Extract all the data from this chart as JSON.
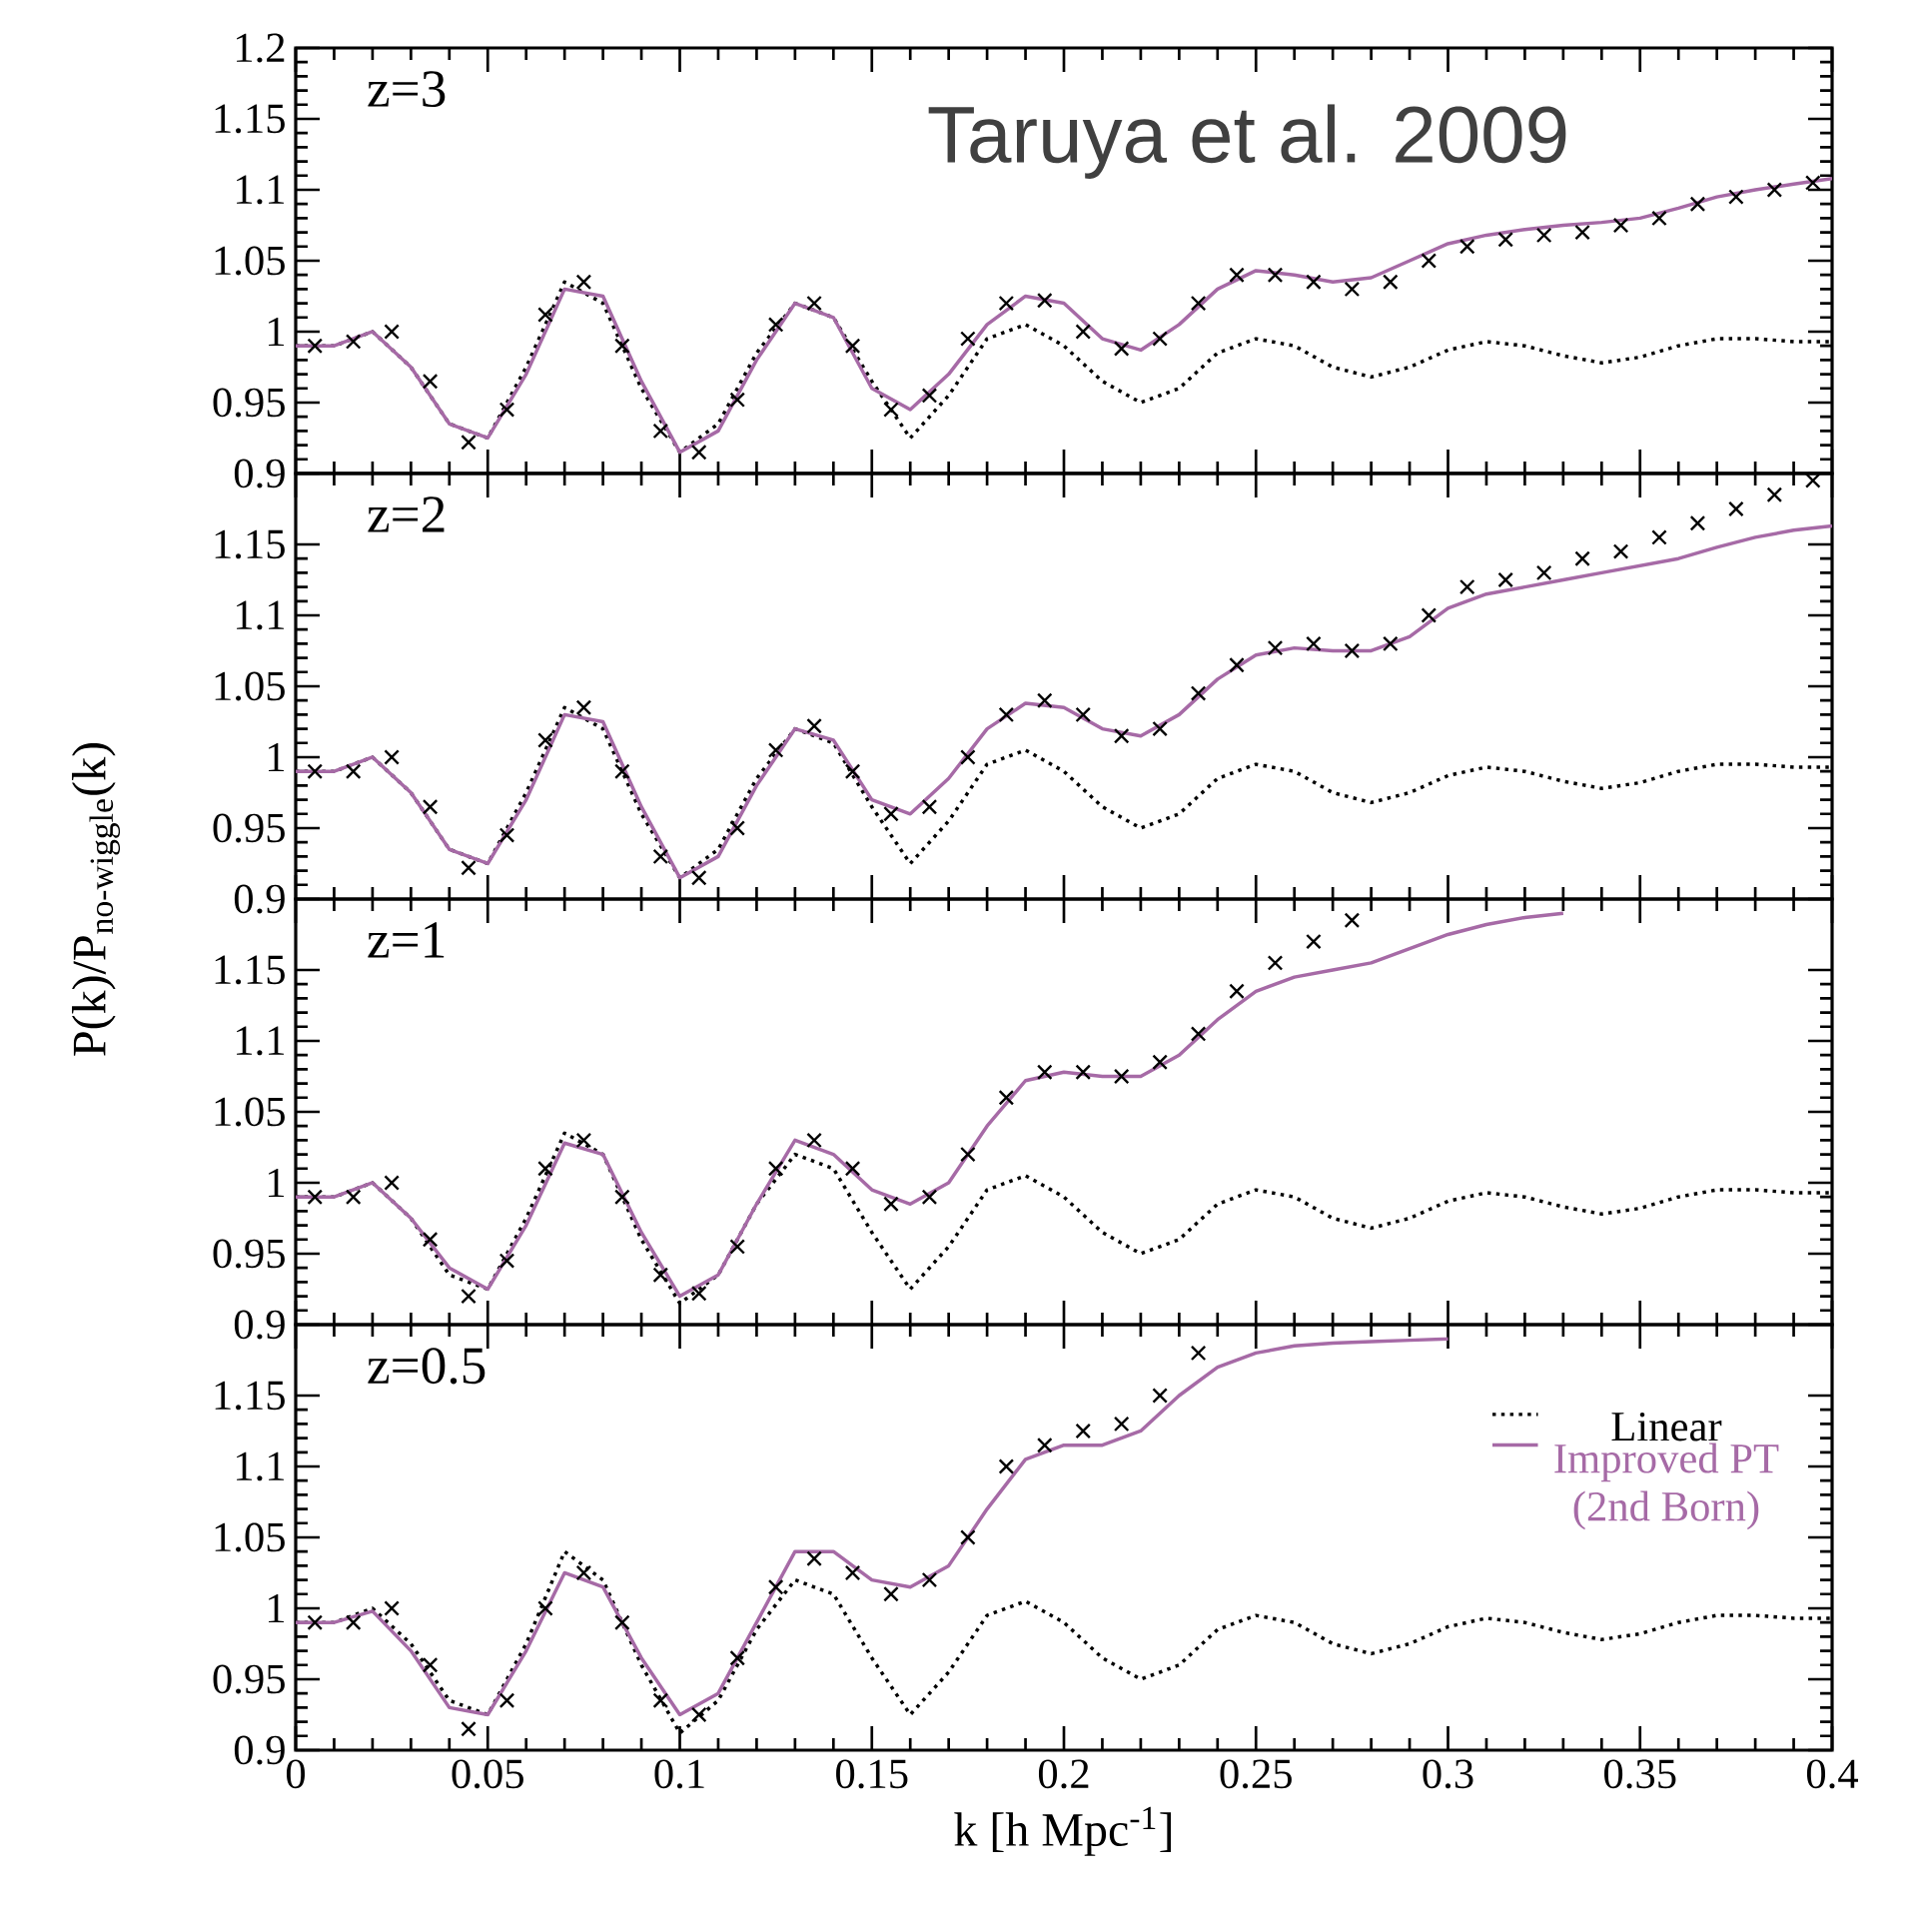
{
  "chart_data": [
    {
      "type": "line",
      "title": "z=3",
      "annotations": [
        "Taruya et al. 2009"
      ],
      "xlim": [
        0,
        0.4
      ],
      "ylim": [
        0.9,
        1.2
      ],
      "xticks": [
        0,
        0.05,
        0.1,
        0.15,
        0.2,
        0.25,
        0.3,
        0.35,
        0.4
      ],
      "yticks": [
        0.9,
        0.95,
        1,
        1.05,
        1.1,
        1.15,
        1.2
      ],
      "tick_labels": "y",
      "series": [
        {
          "type": "line",
          "color": "#000000",
          "line_style": "dotted",
          "x": [
            0,
            0.01,
            0.02,
            0.03,
            0.04,
            0.05,
            0.06,
            0.07,
            0.08,
            0.09,
            0.1,
            0.11,
            0.12,
            0.13,
            0.14,
            0.15,
            0.16,
            0.17,
            0.18,
            0.19,
            0.2,
            0.21,
            0.22,
            0.23,
            0.24,
            0.25,
            0.26,
            0.27,
            0.28,
            0.29,
            0.3,
            0.31,
            0.32,
            0.33,
            0.34,
            0.35,
            0.36,
            0.37,
            0.38,
            0.39,
            0.4
          ],
          "values": [
            0.99,
            0.99,
            1.0,
            0.975,
            0.935,
            0.925,
            0.975,
            1.035,
            1.02,
            0.96,
            0.915,
            0.935,
            0.985,
            1.02,
            1.01,
            0.965,
            0.925,
            0.955,
            0.995,
            1.005,
            0.99,
            0.965,
            0.95,
            0.96,
            0.985,
            0.995,
            0.99,
            0.975,
            0.968,
            0.975,
            0.987,
            0.993,
            0.99,
            0.983,
            0.978,
            0.982,
            0.99,
            0.995,
            0.995,
            0.993,
            0.993
          ]
        },
        {
          "type": "line",
          "color": "#a66aa6",
          "line_style": "solid",
          "x": [
            0,
            0.01,
            0.02,
            0.03,
            0.04,
            0.05,
            0.06,
            0.07,
            0.08,
            0.09,
            0.1,
            0.11,
            0.12,
            0.13,
            0.14,
            0.15,
            0.16,
            0.17,
            0.18,
            0.19,
            0.2,
            0.21,
            0.22,
            0.23,
            0.24,
            0.25,
            0.26,
            0.27,
            0.28,
            0.29,
            0.3,
            0.31,
            0.32,
            0.33,
            0.34,
            0.35,
            0.36,
            0.37,
            0.38,
            0.39,
            0.4
          ],
          "values": [
            0.99,
            0.99,
            1.0,
            0.975,
            0.935,
            0.925,
            0.97,
            1.03,
            1.025,
            0.965,
            0.915,
            0.93,
            0.98,
            1.02,
            1.01,
            0.96,
            0.945,
            0.97,
            1.005,
            1.025,
            1.02,
            0.995,
            0.987,
            1.005,
            1.03,
            1.043,
            1.04,
            1.035,
            1.038,
            1.05,
            1.062,
            1.068,
            1.072,
            1.075,
            1.077,
            1.08,
            1.087,
            1.095,
            1.1,
            1.104,
            1.108
          ]
        },
        {
          "type": "scatter",
          "color": "#000000",
          "marker": "cross",
          "x": [
            0.005,
            0.015,
            0.025,
            0.035,
            0.045,
            0.055,
            0.065,
            0.075,
            0.085,
            0.095,
            0.105,
            0.115,
            0.125,
            0.135,
            0.145,
            0.155,
            0.165,
            0.175,
            0.185,
            0.195,
            0.205,
            0.215,
            0.225,
            0.235,
            0.245,
            0.255,
            0.265,
            0.275,
            0.285,
            0.295,
            0.305,
            0.315,
            0.325,
            0.335,
            0.345,
            0.355,
            0.365,
            0.375,
            0.385,
            0.395
          ],
          "values": [
            0.99,
            0.993,
            1.0,
            0.965,
            0.922,
            0.945,
            1.012,
            1.035,
            0.99,
            0.93,
            0.915,
            0.952,
            1.005,
            1.02,
            0.99,
            0.945,
            0.955,
            0.995,
            1.02,
            1.022,
            1.0,
            0.988,
            0.995,
            1.02,
            1.04,
            1.04,
            1.035,
            1.03,
            1.035,
            1.05,
            1.06,
            1.065,
            1.068,
            1.07,
            1.075,
            1.08,
            1.09,
            1.095,
            1.1,
            1.105
          ]
        }
      ]
    },
    {
      "type": "line",
      "title": "z=2",
      "ylabel": "P(k)/P$_{no-wiggle}$(k)",
      "xlim": [
        0,
        0.4
      ],
      "ylim": [
        0.9,
        1.2
      ],
      "xticks": [
        0,
        0.05,
        0.1,
        0.15,
        0.2,
        0.25,
        0.3,
        0.35,
        0.4
      ],
      "yticks": [
        0.9,
        0.95,
        1,
        1.05,
        1.1,
        1.15
      ],
      "tick_labels": "y",
      "series": [
        {
          "type": "line",
          "color": "#000000",
          "line_style": "dotted",
          "x": [
            0,
            0.01,
            0.02,
            0.03,
            0.04,
            0.05,
            0.06,
            0.07,
            0.08,
            0.09,
            0.1,
            0.11,
            0.12,
            0.13,
            0.14,
            0.15,
            0.16,
            0.17,
            0.18,
            0.19,
            0.2,
            0.21,
            0.22,
            0.23,
            0.24,
            0.25,
            0.26,
            0.27,
            0.28,
            0.29,
            0.3,
            0.31,
            0.32,
            0.33,
            0.34,
            0.35,
            0.36,
            0.37,
            0.38,
            0.39,
            0.4
          ],
          "values": [
            0.99,
            0.99,
            1.0,
            0.975,
            0.935,
            0.925,
            0.975,
            1.035,
            1.02,
            0.96,
            0.915,
            0.935,
            0.985,
            1.02,
            1.01,
            0.965,
            0.925,
            0.955,
            0.995,
            1.005,
            0.99,
            0.965,
            0.95,
            0.96,
            0.985,
            0.995,
            0.99,
            0.975,
            0.968,
            0.975,
            0.987,
            0.993,
            0.99,
            0.983,
            0.978,
            0.982,
            0.99,
            0.995,
            0.995,
            0.993,
            0.993
          ]
        },
        {
          "type": "line",
          "color": "#a66aa6",
          "line_style": "solid",
          "x": [
            0,
            0.01,
            0.02,
            0.03,
            0.04,
            0.05,
            0.06,
            0.07,
            0.08,
            0.09,
            0.1,
            0.11,
            0.12,
            0.13,
            0.14,
            0.15,
            0.16,
            0.17,
            0.18,
            0.19,
            0.2,
            0.21,
            0.22,
            0.23,
            0.24,
            0.25,
            0.26,
            0.27,
            0.28,
            0.29,
            0.3,
            0.31,
            0.32,
            0.33,
            0.34,
            0.35,
            0.36,
            0.37,
            0.38,
            0.39,
            0.4
          ],
          "values": [
            0.99,
            0.99,
            1.0,
            0.975,
            0.935,
            0.925,
            0.97,
            1.03,
            1.025,
            0.965,
            0.915,
            0.93,
            0.98,
            1.02,
            1.012,
            0.97,
            0.96,
            0.985,
            1.02,
            1.038,
            1.035,
            1.02,
            1.015,
            1.03,
            1.055,
            1.072,
            1.077,
            1.075,
            1.075,
            1.085,
            1.105,
            1.115,
            1.12,
            1.125,
            1.13,
            1.135,
            1.14,
            1.148,
            1.155,
            1.16,
            1.163
          ]
        },
        {
          "type": "scatter",
          "color": "#000000",
          "marker": "cross",
          "x": [
            0.005,
            0.015,
            0.025,
            0.035,
            0.045,
            0.055,
            0.065,
            0.075,
            0.085,
            0.095,
            0.105,
            0.115,
            0.125,
            0.135,
            0.145,
            0.155,
            0.165,
            0.175,
            0.185,
            0.195,
            0.205,
            0.215,
            0.225,
            0.235,
            0.245,
            0.255,
            0.265,
            0.275,
            0.285,
            0.295,
            0.305,
            0.315,
            0.325,
            0.335,
            0.345,
            0.355,
            0.365,
            0.375,
            0.385,
            0.395
          ],
          "values": [
            0.99,
            0.99,
            1.0,
            0.965,
            0.922,
            0.945,
            1.012,
            1.035,
            0.99,
            0.93,
            0.915,
            0.95,
            1.005,
            1.022,
            0.99,
            0.96,
            0.965,
            1.0,
            1.03,
            1.04,
            1.03,
            1.015,
            1.02,
            1.045,
            1.065,
            1.077,
            1.08,
            1.075,
            1.08,
            1.1,
            1.12,
            1.125,
            1.13,
            1.14,
            1.145,
            1.155,
            1.165,
            1.175,
            1.185,
            1.195
          ]
        }
      ]
    },
    {
      "type": "line",
      "title": "z=1",
      "xlim": [
        0,
        0.4
      ],
      "ylim": [
        0.9,
        1.2
      ],
      "xticks": [
        0,
        0.05,
        0.1,
        0.15,
        0.2,
        0.25,
        0.3,
        0.35,
        0.4
      ],
      "yticks": [
        0.9,
        0.95,
        1,
        1.05,
        1.1,
        1.15
      ],
      "tick_labels": "y",
      "series": [
        {
          "type": "line",
          "color": "#000000",
          "line_style": "dotted",
          "x": [
            0,
            0.01,
            0.02,
            0.03,
            0.04,
            0.05,
            0.06,
            0.07,
            0.08,
            0.09,
            0.1,
            0.11,
            0.12,
            0.13,
            0.14,
            0.15,
            0.16,
            0.17,
            0.18,
            0.19,
            0.2,
            0.21,
            0.22,
            0.23,
            0.24,
            0.25,
            0.26,
            0.27,
            0.28,
            0.29,
            0.3,
            0.31,
            0.32,
            0.33,
            0.34,
            0.35,
            0.36,
            0.37,
            0.38,
            0.39,
            0.4
          ],
          "values": [
            0.99,
            0.99,
            1.0,
            0.975,
            0.935,
            0.925,
            0.975,
            1.035,
            1.02,
            0.96,
            0.915,
            0.935,
            0.985,
            1.02,
            1.01,
            0.965,
            0.925,
            0.955,
            0.995,
            1.005,
            0.99,
            0.965,
            0.95,
            0.96,
            0.985,
            0.995,
            0.99,
            0.975,
            0.968,
            0.975,
            0.987,
            0.993,
            0.99,
            0.983,
            0.978,
            0.982,
            0.99,
            0.995,
            0.995,
            0.993,
            0.993
          ]
        },
        {
          "type": "line",
          "color": "#a66aa6",
          "line_style": "solid",
          "x": [
            0,
            0.01,
            0.02,
            0.03,
            0.04,
            0.05,
            0.06,
            0.07,
            0.08,
            0.09,
            0.1,
            0.11,
            0.12,
            0.13,
            0.14,
            0.15,
            0.16,
            0.17,
            0.18,
            0.19,
            0.2,
            0.21,
            0.22,
            0.23,
            0.24,
            0.25,
            0.26,
            0.27,
            0.28,
            0.29,
            0.3,
            0.31,
            0.32,
            0.33
          ],
          "values": [
            0.99,
            0.99,
            1.0,
            0.975,
            0.94,
            0.925,
            0.97,
            1.028,
            1.02,
            0.965,
            0.92,
            0.935,
            0.985,
            1.03,
            1.02,
            0.995,
            0.985,
            1.0,
            1.04,
            1.072,
            1.078,
            1.075,
            1.075,
            1.09,
            1.115,
            1.135,
            1.145,
            1.15,
            1.155,
            1.165,
            1.175,
            1.182,
            1.187,
            1.19
          ]
        },
        {
          "type": "scatter",
          "color": "#000000",
          "marker": "cross",
          "x": [
            0.005,
            0.015,
            0.025,
            0.035,
            0.045,
            0.055,
            0.065,
            0.075,
            0.085,
            0.095,
            0.105,
            0.115,
            0.125,
            0.135,
            0.145,
            0.155,
            0.165,
            0.175,
            0.185,
            0.195,
            0.205,
            0.215,
            0.225,
            0.235,
            0.245,
            0.255,
            0.265,
            0.275
          ],
          "values": [
            0.99,
            0.99,
            1.0,
            0.96,
            0.92,
            0.945,
            1.01,
            1.03,
            0.99,
            0.935,
            0.922,
            0.955,
            1.01,
            1.03,
            1.01,
            0.985,
            0.99,
            1.02,
            1.06,
            1.078,
            1.078,
            1.075,
            1.085,
            1.105,
            1.135,
            1.155,
            1.17,
            1.185
          ]
        }
      ]
    },
    {
      "type": "line",
      "title": "z=0.5",
      "xlabel": "k [h Mpc$^{-1}$]",
      "legend": "right",
      "xlim": [
        0,
        0.4
      ],
      "ylim": [
        0.9,
        1.2
      ],
      "xticks": [
        0,
        0.05,
        0.1,
        0.15,
        0.2,
        0.25,
        0.3,
        0.35,
        0.4
      ],
      "yticks": [
        0.9,
        0.95,
        1,
        1.05,
        1.1,
        1.15
      ],
      "series": [
        {
          "type": "line",
          "name": "Linear",
          "color": "#000000",
          "line_style": "dotted",
          "x": [
            0,
            0.01,
            0.02,
            0.03,
            0.04,
            0.05,
            0.06,
            0.07,
            0.08,
            0.09,
            0.1,
            0.11,
            0.12,
            0.13,
            0.14,
            0.15,
            0.16,
            0.17,
            0.18,
            0.19,
            0.2,
            0.21,
            0.22,
            0.23,
            0.24,
            0.25,
            0.26,
            0.27,
            0.28,
            0.29,
            0.3,
            0.31,
            0.32,
            0.33,
            0.34,
            0.35,
            0.36,
            0.37,
            0.38,
            0.39,
            0.4
          ],
          "values": [
            0.99,
            0.99,
            1.0,
            0.975,
            0.935,
            0.925,
            0.975,
            1.04,
            1.02,
            0.96,
            0.912,
            0.935,
            0.985,
            1.02,
            1.01,
            0.965,
            0.925,
            0.955,
            0.995,
            1.005,
            0.99,
            0.965,
            0.95,
            0.96,
            0.985,
            0.995,
            0.99,
            0.975,
            0.968,
            0.975,
            0.987,
            0.993,
            0.99,
            0.983,
            0.978,
            0.982,
            0.99,
            0.995,
            0.995,
            0.993,
            0.993
          ]
        },
        {
          "type": "line",
          "name": "Improved PT (2nd Born)",
          "color": "#a66aa6",
          "line_style": "solid",
          "x": [
            0,
            0.01,
            0.02,
            0.03,
            0.04,
            0.05,
            0.06,
            0.07,
            0.08,
            0.09,
            0.1,
            0.11,
            0.12,
            0.13,
            0.14,
            0.15,
            0.16,
            0.17,
            0.18,
            0.19,
            0.2,
            0.21,
            0.22,
            0.23,
            0.24,
            0.25,
            0.26,
            0.27,
            0.28,
            0.29,
            0.3
          ],
          "values": [
            0.99,
            0.99,
            0.998,
            0.97,
            0.93,
            0.925,
            0.97,
            1.025,
            1.015,
            0.965,
            0.925,
            0.94,
            0.99,
            1.04,
            1.04,
            1.02,
            1.015,
            1.03,
            1.07,
            1.105,
            1.115,
            1.115,
            1.125,
            1.15,
            1.17,
            1.18,
            1.185,
            1.187,
            1.188,
            1.189,
            1.19
          ]
        },
        {
          "type": "scatter",
          "color": "#000000",
          "marker": "cross",
          "x": [
            0.005,
            0.015,
            0.025,
            0.035,
            0.045,
            0.055,
            0.065,
            0.075,
            0.085,
            0.095,
            0.105,
            0.115,
            0.125,
            0.135,
            0.145,
            0.155,
            0.165,
            0.175,
            0.185,
            0.195,
            0.205,
            0.215,
            0.225,
            0.235
          ],
          "values": [
            0.99,
            0.99,
            1.0,
            0.96,
            0.915,
            0.935,
            1.0,
            1.025,
            0.99,
            0.935,
            0.925,
            0.965,
            1.015,
            1.035,
            1.025,
            1.01,
            1.02,
            1.05,
            1.1,
            1.115,
            1.125,
            1.13,
            1.15,
            1.18
          ]
        }
      ]
    }
  ]
}
